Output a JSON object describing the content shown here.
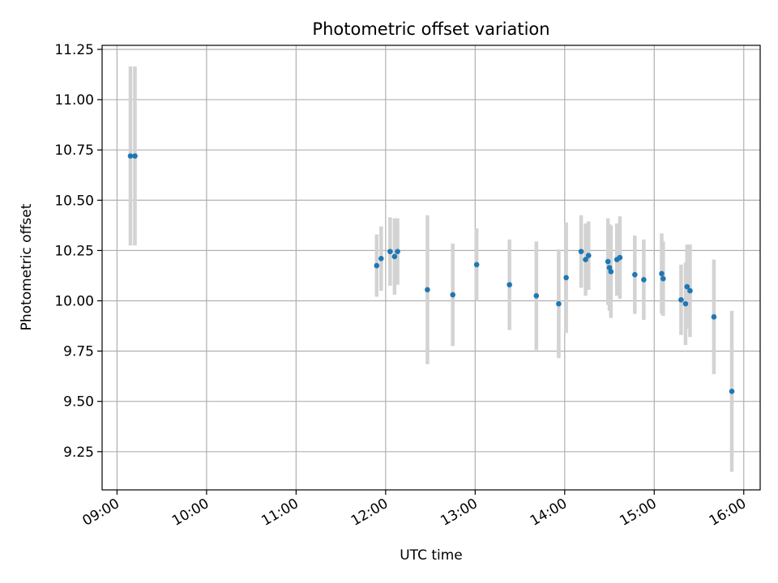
{
  "chart_data": {
    "type": "scatter",
    "title": "Photometric offset variation",
    "xlabel": "UTC time",
    "ylabel": "Photometric offset",
    "x_axis_type": "time",
    "xlim": [
      "08:50",
      "16:11"
    ],
    "ylim": [
      9.06,
      11.27
    ],
    "x_ticks": [
      "09:00",
      "10:00",
      "11:00",
      "12:00",
      "13:00",
      "14:00",
      "15:00",
      "16:00"
    ],
    "y_ticks": [
      9.25,
      9.5,
      9.75,
      10.0,
      10.25,
      10.5,
      10.75,
      11.0,
      11.25
    ],
    "y_tick_labels": [
      "9.25",
      "9.50",
      "9.75",
      "10.00",
      "10.25",
      "10.50",
      "10.75",
      "11.00",
      "11.25"
    ],
    "grid": true,
    "colors": {
      "point": "#1f77b4",
      "errorbar": "#d3d3d3",
      "grid": "#b0b0b0"
    },
    "points": [
      {
        "x": "09:09",
        "y": 10.72,
        "err": 0.445
      },
      {
        "x": "09:12",
        "y": 10.72,
        "err": 0.445
      },
      {
        "x": "11:54",
        "y": 10.175,
        "err": 0.155
      },
      {
        "x": "11:57",
        "y": 10.21,
        "err": 0.16
      },
      {
        "x": "12:03",
        "y": 10.245,
        "err": 0.17
      },
      {
        "x": "12:06",
        "y": 10.22,
        "err": 0.19
      },
      {
        "x": "12:08",
        "y": 10.245,
        "err": 0.165
      },
      {
        "x": "12:28",
        "y": 10.055,
        "err": 0.37
      },
      {
        "x": "12:45",
        "y": 10.03,
        "err": 0.255
      },
      {
        "x": "13:01",
        "y": 10.18,
        "err": 0.18
      },
      {
        "x": "13:23",
        "y": 10.08,
        "err": 0.225
      },
      {
        "x": "13:41",
        "y": 10.025,
        "err": 0.27
      },
      {
        "x": "13:56",
        "y": 9.985,
        "err": 0.27
      },
      {
        "x": "14:01",
        "y": 10.115,
        "err": 0.275
      },
      {
        "x": "14:11",
        "y": 10.245,
        "err": 0.18
      },
      {
        "x": "14:14",
        "y": 10.205,
        "err": 0.18
      },
      {
        "x": "14:16",
        "y": 10.225,
        "err": 0.17
      },
      {
        "x": "14:29",
        "y": 10.195,
        "err": 0.215
      },
      {
        "x": "14:30",
        "y": 10.165,
        "err": 0.215
      },
      {
        "x": "14:31",
        "y": 10.145,
        "err": 0.23
      },
      {
        "x": "14:35",
        "y": 10.205,
        "err": 0.18
      },
      {
        "x": "14:37",
        "y": 10.215,
        "err": 0.205
      },
      {
        "x": "14:47",
        "y": 10.13,
        "err": 0.195
      },
      {
        "x": "14:53",
        "y": 10.105,
        "err": 0.2
      },
      {
        "x": "15:05",
        "y": 10.135,
        "err": 0.2
      },
      {
        "x": "15:06",
        "y": 10.11,
        "err": 0.185
      },
      {
        "x": "15:18",
        "y": 10.005,
        "err": 0.175
      },
      {
        "x": "15:21",
        "y": 9.985,
        "err": 0.205
      },
      {
        "x": "15:22",
        "y": 10.07,
        "err": 0.21
      },
      {
        "x": "15:24",
        "y": 10.05,
        "err": 0.23
      },
      {
        "x": "15:40",
        "y": 9.92,
        "err": 0.285
      },
      {
        "x": "15:52",
        "y": 9.55,
        "err": 0.4
      }
    ]
  }
}
